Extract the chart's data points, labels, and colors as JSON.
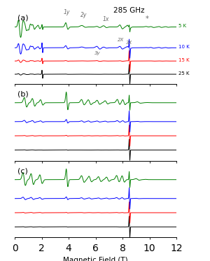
{
  "title_a": "285 GHz",
  "label_a": "(a)",
  "label_b": "(b)",
  "label_c": "(c)",
  "xlabel": "Magnetic Field (T)",
  "colors": [
    "black",
    "red",
    "blue",
    "green"
  ],
  "temps": [
    "25 K",
    "15 K",
    "10 K",
    "5 K"
  ],
  "xmin": 0,
  "xmax": 12,
  "background_color": "#ffffff",
  "lw": 0.7
}
